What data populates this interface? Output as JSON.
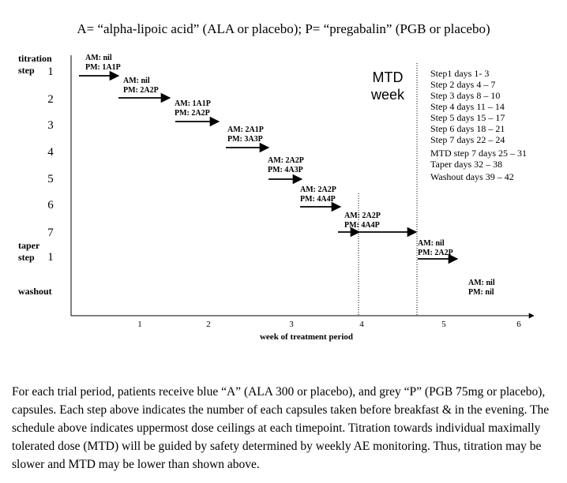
{
  "title": "A= “alpha-lipoic acid” (ALA or placebo); P= “pregabalin” (PGB or placebo)",
  "y_labels": {
    "titration_line1": "titration",
    "titration_line2": "step",
    "taper_line1": "taper",
    "taper_line2": "step",
    "washout": "washout"
  },
  "step_numbers": [
    "1",
    "2",
    "3",
    "4",
    "5",
    "6",
    "7",
    "1"
  ],
  "x_axis": {
    "label": "week of treatment period",
    "ticks": [
      "1",
      "2",
      "3",
      "4",
      "5",
      "6"
    ]
  },
  "doses": [
    {
      "am": "AM: nil",
      "pm": "PM: 1A1P"
    },
    {
      "am": "AM: nil",
      "pm": "PM: 2A2P"
    },
    {
      "am": "AM: 1A1P",
      "pm": "PM: 2A2P"
    },
    {
      "am": "AM: 2A1P",
      "pm": "PM: 3A3P"
    },
    {
      "am": "AM: 2A2P",
      "pm": "PM: 4A3P"
    },
    {
      "am": "AM: 2A2P",
      "pm": "PM: 4A4P"
    },
    {
      "am": "AM: 2A2P",
      "pm": "PM: 4A4P"
    },
    {
      "am": "AM: nil",
      "pm": "PM: 2A2P"
    },
    {
      "am": "AM: nil",
      "pm": "PM: nil"
    }
  ],
  "mtd_label": {
    "line1": "MTD",
    "line2": "week"
  },
  "schedule": [
    "Step1 days 1- 3",
    "Step 2 days 4 – 7",
    "Step 3 days 8 – 10",
    "Step 4 days 11 – 14",
    "Step 5 days 15 – 17",
    "Step 6 days 18 – 21",
    "Step 7 days 22 – 24",
    "MTD step 7 days 25 – 31",
    "Taper days 32 – 38",
    "Washout days 39 – 42"
  ],
  "caption": "For each trial period, patients receive blue “A” (ALA 300 or placebo), and grey “P” (PGB 75mg or placebo), capsules. Each step above indicates the number of each capsules taken before breakfast & in the evening. The schedule above indicates uppermost dose ceilings at each timepoint. Titration towards individual maximally tolerated dose (MTD) will be guided by safety determined by weekly AE monitoring. Thus, titration may be slower and MTD may be lower than shown above."
}
